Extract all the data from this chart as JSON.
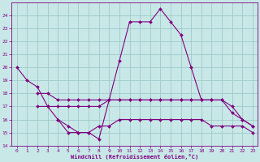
{
  "xlabel": "Windchill (Refroidissement éolien,°C)",
  "x": [
    0,
    1,
    2,
    3,
    4,
    5,
    6,
    7,
    8,
    9,
    10,
    11,
    12,
    13,
    14,
    15,
    16,
    17,
    18,
    19,
    20,
    21,
    22,
    23
  ],
  "line1": [
    20,
    19,
    18.5,
    17,
    16,
    15,
    15,
    15,
    14.5,
    17.5,
    20.5,
    23.5,
    23.5,
    23.5,
    24.5,
    23.5,
    22.5,
    20,
    17.5,
    17.5,
    null,
    null,
    null,
    null
  ],
  "line2": [
    null,
    null,
    17,
    17,
    17,
    17,
    17,
    17,
    17,
    17.5,
    17.5,
    17.5,
    17.5,
    17.5,
    17.5,
    17.5,
    17.5,
    17.5,
    17.5,
    17.5,
    17.5,
    16.5,
    16,
    15.5
  ],
  "line3": [
    null,
    null,
    18,
    18,
    17.5,
    17.5,
    17.5,
    17.5,
    17.5,
    17.5,
    17.5,
    17.5,
    17.5,
    17.5,
    17.5,
    17.5,
    17.5,
    17.5,
    17.5,
    17.5,
    17.5,
    17,
    16,
    15.5
  ],
  "line4": [
    null,
    null,
    null,
    null,
    16,
    15.5,
    15,
    15,
    15.5,
    15.5,
    16,
    16,
    16,
    16,
    16,
    16,
    16,
    16,
    16,
    15.5,
    15.5,
    15.5,
    15.5,
    15
  ],
  "ylim": [
    14,
    25
  ],
  "xlim": [
    -0.5,
    23.5
  ],
  "yticks": [
    14,
    15,
    16,
    17,
    18,
    19,
    20,
    21,
    22,
    23,
    24
  ],
  "xticks": [
    0,
    1,
    2,
    3,
    4,
    5,
    6,
    7,
    8,
    9,
    10,
    11,
    12,
    13,
    14,
    15,
    16,
    17,
    18,
    19,
    20,
    21,
    22,
    23
  ],
  "line_color": "#800080",
  "bg_color": "#c8e8e8",
  "grid_color": "#a0c8c8",
  "marker": "D",
  "markersize": 2.0,
  "linewidth": 0.8
}
